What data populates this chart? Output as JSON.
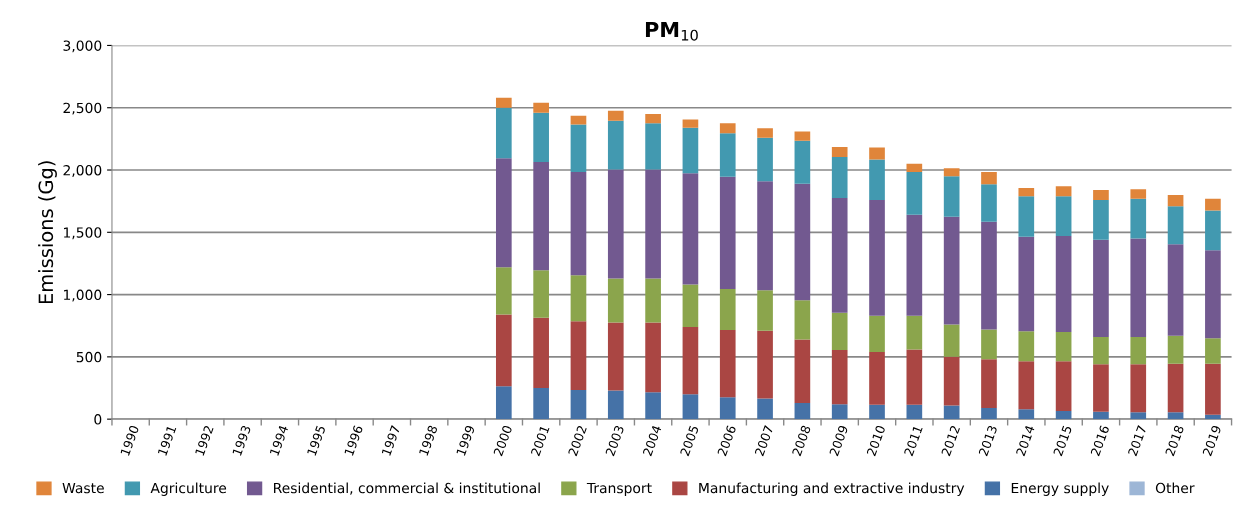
{
  "chart_data": {
    "type": "bar",
    "title": "PM$_{10}$",
    "ylabel": "Emissions (Gg)",
    "stacked": true,
    "categories": [
      "1990",
      "1991",
      "1992",
      "1993",
      "1994",
      "1995",
      "1996",
      "1997",
      "1998",
      "1999",
      "2000",
      "2001",
      "2002",
      "2003",
      "2004",
      "2005",
      "2006",
      "2007",
      "2008",
      "2009",
      "2010",
      "2011",
      "2012",
      "2013",
      "2014",
      "2015",
      "2016",
      "2017",
      "2018",
      "2019"
    ],
    "series": [
      {
        "name": "Other",
        "color": "#9db6d6",
        "values": [
          null,
          null,
          null,
          null,
          null,
          null,
          null,
          null,
          null,
          null,
          0,
          0,
          0,
          0,
          0,
          0,
          0,
          0,
          0,
          0,
          0,
          0,
          0,
          0,
          0,
          0,
          0,
          0,
          0,
          0
        ]
      },
      {
        "name": "Energy supply",
        "color": "#4572a7",
        "values": [
          null,
          null,
          null,
          null,
          null,
          null,
          null,
          null,
          null,
          null,
          265,
          250,
          235,
          230,
          215,
          200,
          175,
          165,
          130,
          120,
          115,
          115,
          110,
          90,
          80,
          65,
          60,
          55,
          55,
          35
        ]
      },
      {
        "name": "Manufacturing and extractive industry",
        "color": "#aa4643",
        "values": [
          null,
          null,
          null,
          null,
          null,
          null,
          null,
          null,
          null,
          null,
          575,
          565,
          550,
          545,
          560,
          540,
          540,
          545,
          510,
          435,
          425,
          445,
          390,
          390,
          385,
          400,
          380,
          385,
          390,
          410
        ]
      },
      {
        "name": "Transport",
        "color": "#8ba54c",
        "values": [
          null,
          null,
          null,
          null,
          null,
          null,
          null,
          null,
          null,
          null,
          380,
          380,
          370,
          355,
          355,
          340,
          330,
          325,
          315,
          300,
          290,
          270,
          260,
          240,
          240,
          235,
          220,
          220,
          225,
          205
        ]
      },
      {
        "name": "Residential, commercial & institutional",
        "color": "#725990",
        "values": [
          null,
          null,
          null,
          null,
          null,
          null,
          null,
          null,
          null,
          null,
          875,
          870,
          830,
          875,
          875,
          895,
          900,
          875,
          935,
          920,
          930,
          810,
          865,
          865,
          760,
          770,
          780,
          790,
          735,
          705
        ]
      },
      {
        "name": "Agriculture",
        "color": "#4299b0",
        "values": [
          null,
          null,
          null,
          null,
          null,
          null,
          null,
          null,
          null,
          null,
          405,
          395,
          380,
          390,
          370,
          365,
          350,
          350,
          345,
          330,
          325,
          345,
          325,
          300,
          325,
          320,
          320,
          320,
          305,
          320
        ]
      },
      {
        "name": "Waste",
        "color": "#e0853a",
        "values": [
          null,
          null,
          null,
          null,
          null,
          null,
          null,
          null,
          null,
          null,
          80,
          80,
          70,
          80,
          75,
          65,
          80,
          75,
          75,
          80,
          95,
          65,
          65,
          100,
          65,
          80,
          80,
          75,
          90,
          95
        ]
      }
    ],
    "ylim": [
      0,
      3000
    ],
    "yticks": [
      {
        "value": 0,
        "label": "0"
      },
      {
        "value": 500,
        "label": "500"
      },
      {
        "value": 1000,
        "label": "1,000"
      },
      {
        "value": 1500,
        "label": "1,500"
      },
      {
        "value": 2000,
        "label": "2,000"
      },
      {
        "value": 2500,
        "label": "2,500"
      },
      {
        "value": 3000,
        "label": "3,000"
      }
    ],
    "grid": "y",
    "legend": "bottom"
  }
}
